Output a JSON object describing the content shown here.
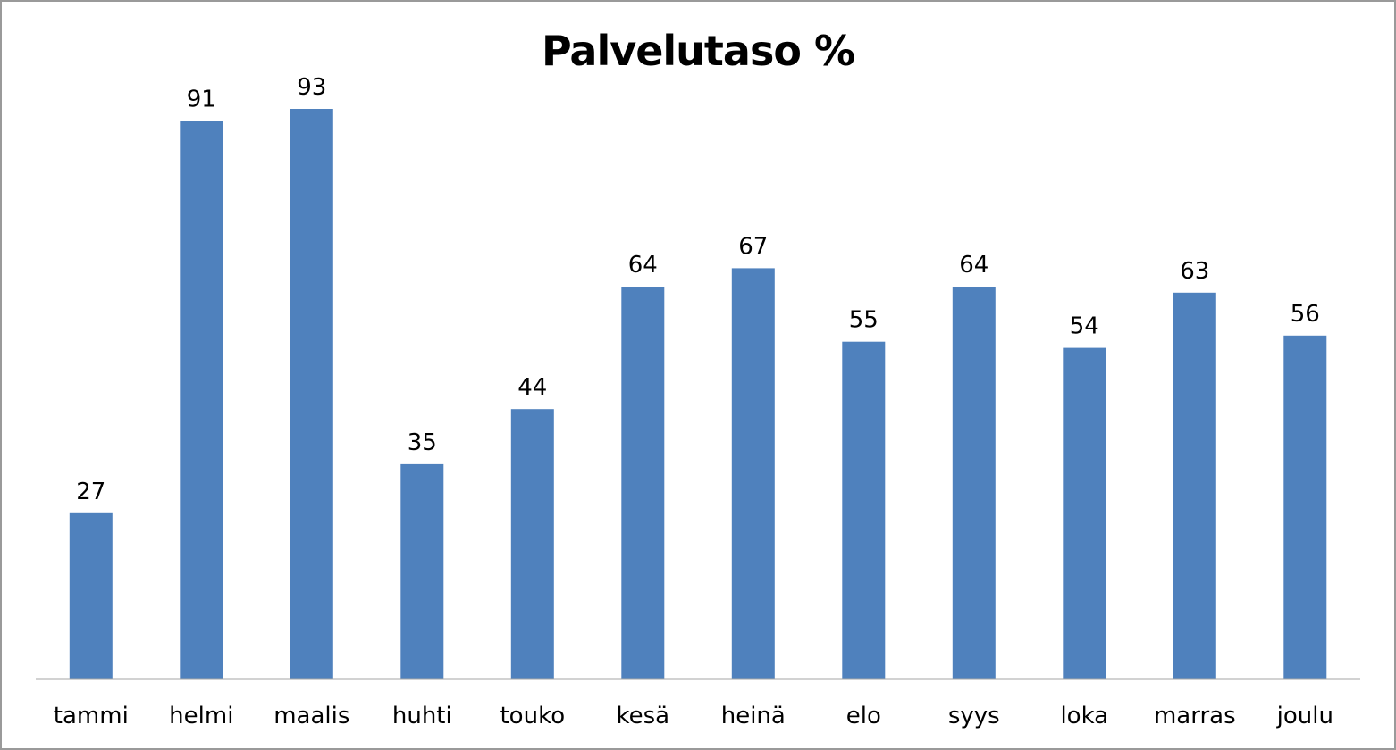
{
  "chart_data": {
    "type": "bar",
    "title": "Palvelutaso %",
    "xlabel": "",
    "ylabel": "",
    "categories": [
      "tammi",
      "helmi",
      "maalis",
      "huhti",
      "touko",
      "kesä",
      "heinä",
      "elo",
      "syys",
      "loka",
      "marras",
      "joulu"
    ],
    "values": [
      27,
      91,
      93,
      35,
      44,
      64,
      67,
      55,
      64,
      54,
      63,
      56
    ],
    "data_labels": [
      "27",
      "91",
      "93",
      "35",
      "44",
      "64",
      "67",
      "55",
      "64",
      "54",
      "63",
      "56"
    ],
    "ylim": [
      0,
      100
    ],
    "grid": false,
    "legend": "none",
    "bar_color": "#4F81BD",
    "axis_color": "#A6A6A6",
    "text_color": "#000000"
  }
}
